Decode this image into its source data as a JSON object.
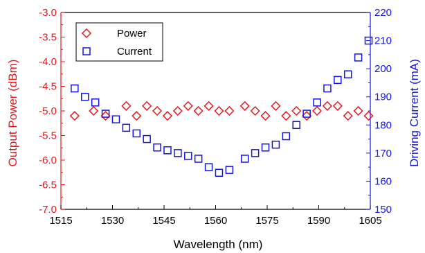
{
  "chart_data": {
    "type": "scatter",
    "xlabel": "Wavelength (nm)",
    "ylabel_left": "Output Power (dBm)",
    "ylabel_right": "Driving Current (mA)",
    "xlim": [
      1515,
      1605
    ],
    "ylim_left": [
      -7.0,
      -3.0
    ],
    "ylim_right": [
      150,
      220
    ],
    "x_ticks": [
      "1515",
      "1530",
      "1545",
      "1560",
      "1575",
      "1590",
      "1605"
    ],
    "y_left_ticks": [
      "-7.0",
      "-6.5",
      "-6.0",
      "-5.5",
      "-5.0",
      "-4.5",
      "-4.0",
      "-3.5",
      "-3.0"
    ],
    "y_right_ticks": [
      "150",
      "160",
      "170",
      "180",
      "190",
      "200",
      "210",
      "220"
    ],
    "grid": false,
    "legend_position": "top-left",
    "colors": {
      "left_axis": "#e8141a",
      "right_axis": "#1414e0"
    },
    "series": [
      {
        "name": "Power",
        "axis": "left",
        "marker": "diamond",
        "color": "#e8141a",
        "x": [
          1519,
          1524.5,
          1528,
          1534,
          1537,
          1540,
          1543,
          1546,
          1549,
          1552,
          1555,
          1558,
          1561,
          1564,
          1568.5,
          1571.5,
          1574.5,
          1577.5,
          1580.5,
          1583.5,
          1586.5,
          1589.5,
          1592.5,
          1595.5,
          1598.5,
          1601.5,
          1604.5
        ],
        "values": [
          -5.1,
          -5.0,
          -5.1,
          -4.9,
          -5.1,
          -4.9,
          -5.0,
          -5.1,
          -5.0,
          -4.9,
          -5.0,
          -4.9,
          -5.0,
          -5.0,
          -4.9,
          -5.0,
          -5.1,
          -4.9,
          -5.1,
          -5.0,
          -5.1,
          -5.0,
          -4.9,
          -4.9,
          -5.1,
          -5.0,
          -5.1
        ]
      },
      {
        "name": "Current",
        "axis": "right",
        "marker": "square",
        "color": "#1414e0",
        "x": [
          1519,
          1522,
          1525,
          1528,
          1531,
          1534,
          1537,
          1540,
          1543,
          1546,
          1549,
          1552,
          1555,
          1558,
          1561,
          1564,
          1568.5,
          1571.5,
          1574.5,
          1577.5,
          1580.5,
          1583.5,
          1586.5,
          1589.5,
          1592.5,
          1595.5,
          1598.5,
          1601.5,
          1604.5
        ],
        "values": [
          193,
          190,
          188,
          184,
          182,
          179,
          177,
          175,
          172,
          171,
          170,
          169,
          168,
          165,
          163,
          164,
          168,
          170,
          172,
          173,
          176,
          180,
          184,
          188,
          193,
          196,
          198,
          204,
          210
        ]
      }
    ]
  }
}
